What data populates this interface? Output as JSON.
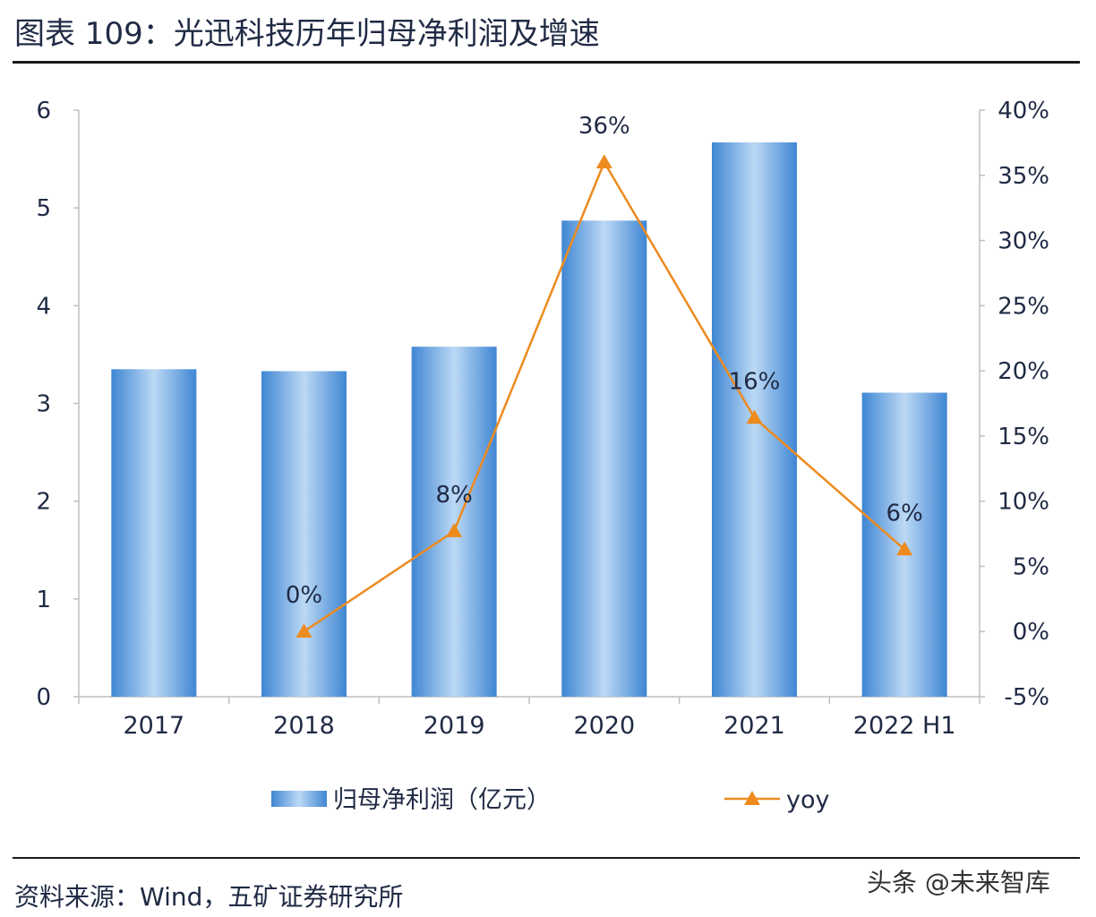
{
  "header": {
    "title": "图表 109：光迅科技历年归母净利润及增速"
  },
  "footer": {
    "source": "资料来源：Wind，五矿证券研究所",
    "watermark": "头条 @未来智库"
  },
  "colors": {
    "bar": "#5b9bd5",
    "line": "#ed8b1f",
    "text": "#1f2a44",
    "axis": "#bfbfbf"
  },
  "chart_data": {
    "type": "bar",
    "categories": [
      "2017",
      "2018",
      "2019",
      "2020",
      "2021",
      "2022 H1"
    ],
    "series": [
      {
        "name": "归母净利润（亿元）",
        "type": "bar",
        "axis": "left",
        "values": [
          3.35,
          3.33,
          3.58,
          4.87,
          5.67,
          3.11
        ]
      },
      {
        "name": "yoy",
        "type": "line",
        "axis": "right",
        "values": [
          null,
          0,
          7.7,
          36,
          16.4,
          6.3
        ],
        "data_labels": [
          "",
          "0%",
          "8%",
          "36%",
          "16%",
          "6%"
        ]
      }
    ],
    "y_left": {
      "ylim": [
        0,
        6
      ],
      "ticks": [
        "0",
        "1",
        "2",
        "3",
        "4",
        "5",
        "6"
      ]
    },
    "y_right": {
      "ylim": [
        -5,
        40
      ],
      "ticks": [
        "-5%",
        "0%",
        "5%",
        "10%",
        "15%",
        "20%",
        "25%",
        "30%",
        "35%",
        "40%"
      ]
    },
    "grid": false,
    "legend": "bottom"
  }
}
